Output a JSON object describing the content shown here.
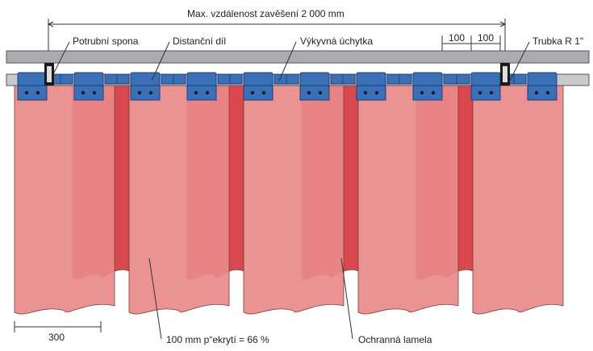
{
  "labels": {
    "max_distance": "Max. vzdálenost zavěšení 2 000 mm",
    "pipe_clamp": "Potrubní spona",
    "spacer": "Distanční díl",
    "swing_clip": "Výkyvná úchytka",
    "pipe": "Trubka R 1\"",
    "dim_100_a": "100",
    "dim_100_b": "100",
    "scale_300": "300",
    "overlap": "100 mm p“ekrytí = 66 %",
    "strip": "Ochranná lamela"
  },
  "colors": {
    "rail": "#a9abae",
    "rail_stroke": "#555555",
    "clip_blue": "#3b6fb6",
    "clip_dark": "#1f3f7a",
    "strip_front": "#e98a8a",
    "strip_back": "#d9474f",
    "leader": "#333333"
  }
}
